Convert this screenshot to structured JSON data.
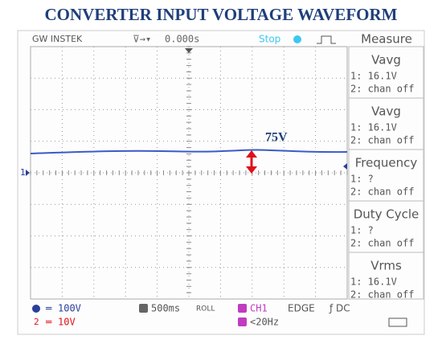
{
  "title": "CONVERTER INPUT VOLTAGE WAVEFORM",
  "header": {
    "brand": "GW INSTEK",
    "timebase_position": "0.000s",
    "status": "Stop",
    "menu": "Measure"
  },
  "panel": [
    {
      "label": "Vavg",
      "ch1": "1: 16.1V",
      "ch2": "2: chan off"
    },
    {
      "label": "Vavg",
      "ch1": "1: 16.1V",
      "ch2": "2: chan off"
    },
    {
      "label": "Frequency",
      "ch1": "1:   ?",
      "ch2": "2: chan off"
    },
    {
      "label": "Duty Cycle",
      "ch1": "1:   ?",
      "ch2": "2: chan off"
    },
    {
      "label": "Vrms",
      "ch1": "1: 16.1V",
      "ch2": "2: chan off"
    }
  ],
  "annotation": "75V",
  "channel_marker": "1",
  "footer": {
    "ch1_scale": "100V",
    "ch2_scale": "10V",
    "timebase": "500ms",
    "mode": "ROLL",
    "trigger_source": "CH1",
    "trigger_type": "EDGE",
    "coupling": "DC",
    "filter": "<20Hz"
  }
}
